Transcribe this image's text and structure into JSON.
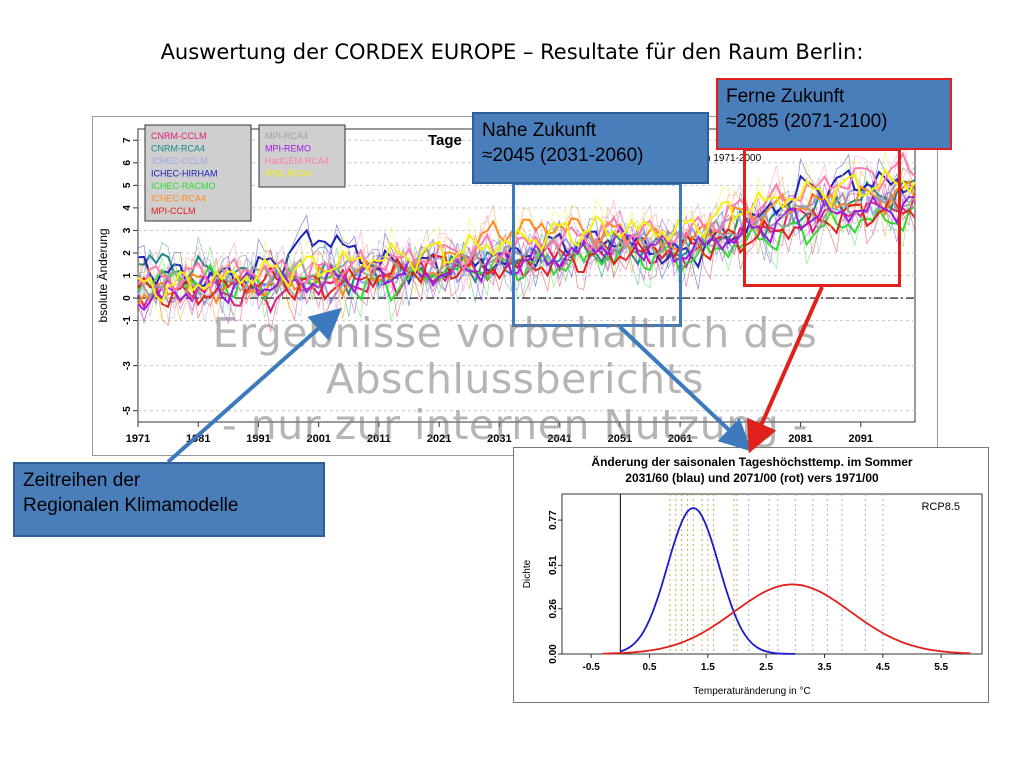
{
  "slide": {
    "title": "Auswertung der CORDEX EUROPE – Resultate für den Raum Berlin:",
    "watermark_line1": "Ergebnisse vorbehaltlich des Abschlussberichts",
    "watermark_line2": "- nur zur internen Nutzung -"
  },
  "callouts": {
    "near_line1": "Nahe Zukunft",
    "near_line2": "≈2045 (2031-2060)",
    "far_line1": "Ferne Zukunft",
    "far_line2": "≈2085 (2071-2100)",
    "series_line1": "Zeitreihen der",
    "series_line2": "Regionalen Klimamodelle"
  },
  "colors": {
    "callout_fill": "#4a7ebb",
    "near_box": "#3d79bd",
    "far_box": "#e0201b",
    "watermark": "#787878"
  },
  "chart_data": [
    {
      "type": "line",
      "title_visible": "Tage",
      "title_fragment_right": "n 1971-2000",
      "ylabel": "bsolute Änderung",
      "xlim": [
        1971,
        2100
      ],
      "ylim": [
        -5.5,
        7.5
      ],
      "x_ticks": [
        1971,
        1981,
        1991,
        2001,
        2011,
        2021,
        2031,
        2041,
        2051,
        2061,
        2071,
        2081,
        2091
      ],
      "y_ticks": [
        -5,
        -3,
        -1,
        0,
        1,
        2,
        3,
        4,
        5,
        6,
        7
      ],
      "x_tick_labels": [
        "1971",
        "1981",
        "1991",
        "2001",
        "2011",
        "2021",
        "2031",
        "2041",
        "2051",
        "2061",
        "2071",
        "2081",
        "2091"
      ],
      "y_tick_labels": [
        "-5",
        "-3",
        "-1",
        "0",
        "1",
        "2",
        "3",
        "4",
        "5",
        "6",
        "7"
      ],
      "reference_line": 0,
      "grid": true,
      "legend_placement": "top-left",
      "legend_left": [
        {
          "name": "CNRM-CCLM",
          "color": "#e6197a"
        },
        {
          "name": "CNRM-RCA4",
          "color": "#1a8a86"
        },
        {
          "name": "ICHEC-CCLM",
          "color": "#9aa7f0"
        },
        {
          "name": "ICHEC-HIRHAM",
          "color": "#1a22b8"
        },
        {
          "name": "ICHEC-RACMO",
          "color": "#2ee02e"
        },
        {
          "name": "ICHEC-RCA4",
          "color": "#ff8c1a"
        },
        {
          "name": "MPI-CCLM",
          "color": "#e0201b"
        }
      ],
      "legend_right": [
        {
          "name": "MPI-RCA4",
          "color": "#a0a0a0"
        },
        {
          "name": "MPI-REMO",
          "color": "#9a1ae6"
        },
        {
          "name": "HadGEM-RCA4",
          "color": "#ff7ab0"
        },
        {
          "name": "IPSL-RCA4",
          "color": "#f2f20d"
        }
      ],
      "series": [
        {
          "name": "CNRM-CCLM",
          "x": [
            1971,
            1981,
            1991,
            2001,
            2011,
            2021,
            2031,
            2041,
            2051,
            2061,
            2071,
            2081,
            2091,
            2100
          ],
          "y": [
            0.2,
            0.5,
            0.0,
            0.6,
            0.8,
            1.1,
            1.5,
            1.8,
            2.2,
            2.0,
            3.0,
            3.6,
            4.0,
            4.2
          ]
        },
        {
          "name": "CNRM-RCA4",
          "x": [
            1971,
            1981,
            1991,
            2001,
            2011,
            2021,
            2031,
            2041,
            2051,
            2061,
            2071,
            2081,
            2091,
            2100
          ],
          "y": [
            1.8,
            1.2,
            0.8,
            0.9,
            1.0,
            1.2,
            1.6,
            1.9,
            2.3,
            2.1,
            3.2,
            3.8,
            4.5,
            4.8
          ]
        },
        {
          "name": "ICHEC-CCLM",
          "x": [
            1971,
            1981,
            1991,
            2001,
            2011,
            2021,
            2031,
            2041,
            2051,
            2061,
            2071,
            2081,
            2091,
            2100
          ],
          "y": [
            0.5,
            0.3,
            0.7,
            0.4,
            0.9,
            1.3,
            1.7,
            2.0,
            2.5,
            2.3,
            3.3,
            4.0,
            4.4,
            4.6
          ]
        },
        {
          "name": "ICHEC-HIRHAM",
          "x": [
            1971,
            1981,
            1991,
            2001,
            2011,
            2021,
            2031,
            2041,
            2051,
            2061,
            2071,
            2081,
            2091,
            2100
          ],
          "y": [
            1.5,
            0.8,
            1.2,
            2.8,
            1.5,
            1.4,
            1.6,
            2.4,
            2.6,
            1.8,
            3.0,
            4.8,
            5.2,
            5.0
          ]
        },
        {
          "name": "ICHEC-RACMO",
          "x": [
            1971,
            1981,
            1991,
            2001,
            2011,
            2021,
            2031,
            2041,
            2051,
            2061,
            2071,
            2081,
            2091,
            2100
          ],
          "y": [
            0.8,
            0.9,
            0.5,
            1.0,
            0.4,
            1.2,
            1.4,
            1.5,
            2.0,
            1.7,
            2.4,
            3.0,
            3.4,
            3.6
          ]
        },
        {
          "name": "ICHEC-RCA4",
          "x": [
            1971,
            1981,
            1991,
            2001,
            2011,
            2021,
            2031,
            2041,
            2051,
            2061,
            2071,
            2081,
            2091,
            2100
          ],
          "y": [
            0.0,
            0.6,
            0.4,
            0.8,
            1.1,
            1.3,
            3.0,
            3.2,
            2.8,
            2.4,
            3.6,
            4.2,
            4.4,
            4.6
          ]
        },
        {
          "name": "MPI-CCLM",
          "x": [
            1971,
            1981,
            1991,
            2001,
            2011,
            2021,
            2031,
            2041,
            2051,
            2061,
            2071,
            2081,
            2091,
            2100
          ],
          "y": [
            0.3,
            0.2,
            0.8,
            0.5,
            1.0,
            1.5,
            1.3,
            1.6,
            2.0,
            2.2,
            2.6,
            3.2,
            3.8,
            4.0
          ]
        },
        {
          "name": "MPI-RCA4",
          "x": [
            1971,
            1981,
            1991,
            2001,
            2011,
            2021,
            2031,
            2041,
            2051,
            2061,
            2071,
            2081,
            2091,
            2100
          ],
          "y": [
            0.6,
            0.8,
            0.9,
            1.2,
            1.4,
            1.6,
            1.8,
            2.1,
            2.4,
            2.5,
            3.1,
            3.7,
            4.1,
            4.3
          ]
        },
        {
          "name": "MPI-REMO",
          "x": [
            1971,
            1981,
            1991,
            2001,
            2011,
            2021,
            2031,
            2041,
            2051,
            2061,
            2071,
            2081,
            2091,
            2100
          ],
          "y": [
            -0.2,
            0.4,
            0.6,
            0.7,
            1.2,
            1.0,
            1.6,
            1.8,
            2.6,
            2.0,
            2.8,
            3.6,
            3.9,
            4.1
          ]
        },
        {
          "name": "HadGEM-RCA4",
          "x": [
            1971,
            1981,
            1991,
            2001,
            2011,
            2021,
            2031,
            2041,
            2051,
            2061,
            2071,
            2081,
            2091,
            2100
          ],
          "y": [
            0.9,
            1.0,
            1.3,
            1.1,
            1.6,
            1.9,
            2.2,
            2.6,
            3.0,
            2.8,
            3.9,
            4.7,
            5.4,
            5.8
          ]
        },
        {
          "name": "IPSL-RCA4",
          "x": [
            1971,
            1981,
            1991,
            2001,
            2011,
            2021,
            2031,
            2041,
            2051,
            2061,
            2071,
            2081,
            2091,
            2100
          ],
          "y": [
            0.4,
            0.7,
            1.1,
            1.4,
            1.8,
            2.0,
            2.4,
            2.9,
            3.1,
            3.0,
            4.0,
            4.6,
            5.0,
            5.2
          ]
        }
      ]
    },
    {
      "type": "line",
      "title_line1": "Änderung der saisonalen Tageshöchsttemp. im Sommer",
      "title_line2": "2031/60 (blau) und 2071/00 (rot) vers 1971/00",
      "xlabel": "Temperaturänderung in °C",
      "ylabel": "Dichte",
      "annotation": "RCP8.5",
      "xlim": [
        -1.0,
        6.2
      ],
      "ylim": [
        0.0,
        0.92
      ],
      "x_ticks": [
        -0.5,
        0.5,
        1.5,
        2.5,
        3.5,
        4.5,
        5.5
      ],
      "x_tick_labels": [
        "-0.5",
        "0.5",
        "1.5",
        "2.5",
        "3.5",
        "4.5",
        "5.5"
      ],
      "y_ticks": [
        0.0,
        0.26,
        0.51,
        0.77
      ],
      "y_tick_labels": [
        "0.00",
        "0.26",
        "0.51",
        "0.77"
      ],
      "reference_line_x": 0.0,
      "series": [
        {
          "name": "2031/60",
          "color": "#1a1ad0",
          "mean": 1.25,
          "sd": 0.44,
          "peak": 0.84,
          "xrange": [
            0.0,
            3.0
          ]
        },
        {
          "name": "2071/00",
          "color": "#e0201b",
          "mean": 2.95,
          "sd": 1.0,
          "peak": 0.4,
          "xrange": [
            -0.3,
            6.0
          ]
        }
      ],
      "model_markers_near": [
        0.85,
        0.95,
        1.05,
        1.15,
        1.25,
        1.4,
        1.5,
        1.6,
        1.95,
        2.0
      ],
      "model_markers_far": [
        2.2,
        2.55,
        2.7,
        3.0,
        3.3,
        3.55,
        3.8,
        4.2,
        4.5
      ]
    }
  ]
}
